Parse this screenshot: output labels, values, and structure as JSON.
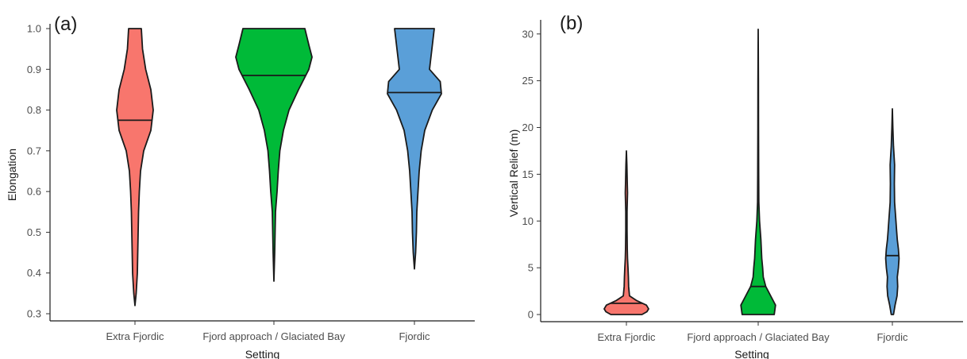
{
  "chart_data": [
    {
      "panel_label": "(a)",
      "type": "violin",
      "xlabel": "Setting",
      "ylabel": "Elongation",
      "ylim": [
        0.3,
        1.0
      ],
      "yticks": [
        0.3,
        0.4,
        0.5,
        0.6,
        0.7,
        0.8,
        0.9,
        1.0
      ],
      "ytick_labels": [
        "0.3",
        "0.4",
        "0.5",
        "0.6",
        "0.7",
        "0.8",
        "0.9",
        "1.0"
      ],
      "categories": [
        "Extra Fjordic",
        "Fjord approach / Glaciated Bay",
        "Fjordic"
      ],
      "series": [
        {
          "category": "Extra Fjordic",
          "color": "#f8766d",
          "median": 0.775,
          "min": 0.32,
          "max": 1.0,
          "profile": [
            [
              0.32,
              0.0
            ],
            [
              0.35,
              0.03
            ],
            [
              0.4,
              0.06
            ],
            [
              0.45,
              0.07
            ],
            [
              0.5,
              0.08
            ],
            [
              0.55,
              0.09
            ],
            [
              0.6,
              0.11
            ],
            [
              0.65,
              0.14
            ],
            [
              0.7,
              0.22
            ],
            [
              0.75,
              0.4
            ],
            [
              0.8,
              0.46
            ],
            [
              0.85,
              0.4
            ],
            [
              0.9,
              0.27
            ],
            [
              0.95,
              0.19
            ],
            [
              1.0,
              0.16
            ]
          ]
        },
        {
          "category": "Fjord approach / Glaciated Bay",
          "color": "#00ba38",
          "median": 0.885,
          "min": 0.38,
          "max": 1.0,
          "profile": [
            [
              0.38,
              0.0
            ],
            [
              0.45,
              0.02
            ],
            [
              0.5,
              0.03
            ],
            [
              0.55,
              0.04
            ],
            [
              0.6,
              0.08
            ],
            [
              0.65,
              0.11
            ],
            [
              0.7,
              0.15
            ],
            [
              0.75,
              0.24
            ],
            [
              0.8,
              0.38
            ],
            [
              0.85,
              0.62
            ],
            [
              0.9,
              0.88
            ],
            [
              0.93,
              0.96
            ],
            [
              0.96,
              0.88
            ],
            [
              1.0,
              0.78
            ]
          ]
        },
        {
          "category": "Fjordic",
          "color": "#5a9fd8",
          "median": 0.843,
          "min": 0.41,
          "max": 1.0,
          "profile": [
            [
              0.41,
              0.0
            ],
            [
              0.45,
              0.03
            ],
            [
              0.5,
              0.05
            ],
            [
              0.55,
              0.06
            ],
            [
              0.6,
              0.09
            ],
            [
              0.65,
              0.12
            ],
            [
              0.7,
              0.17
            ],
            [
              0.75,
              0.26
            ],
            [
              0.8,
              0.45
            ],
            [
              0.84,
              0.68
            ],
            [
              0.87,
              0.65
            ],
            [
              0.9,
              0.38
            ],
            [
              0.95,
              0.44
            ],
            [
              1.0,
              0.5
            ]
          ]
        }
      ]
    },
    {
      "panel_label": "(b)",
      "type": "violin",
      "xlabel": "Setting",
      "ylabel": "Vertical Relief (m)",
      "ylim": [
        0,
        31
      ],
      "yticks": [
        0,
        5,
        10,
        15,
        20,
        25,
        30
      ],
      "ytick_labels": [
        "0",
        "5",
        "10",
        "15",
        "20",
        "25",
        "30"
      ],
      "categories": [
        "Extra Fjordic",
        "Fjord approach / Glaciated Bay",
        "Fjordic"
      ],
      "series": [
        {
          "category": "Extra Fjordic",
          "color": "#f8766d",
          "median": 1.2,
          "min": 0,
          "max": 17.5,
          "profile": [
            [
              0.0,
              0.7
            ],
            [
              0.3,
              0.92
            ],
            [
              0.6,
              1.0
            ],
            [
              1.0,
              0.9
            ],
            [
              1.5,
              0.45
            ],
            [
              2.0,
              0.14
            ],
            [
              3.0,
              0.1
            ],
            [
              4.0,
              0.09
            ],
            [
              5.0,
              0.07
            ],
            [
              6.0,
              0.05
            ],
            [
              7.0,
              0.04
            ],
            [
              9.0,
              0.03
            ],
            [
              11.0,
              0.03
            ],
            [
              13.0,
              0.05
            ],
            [
              14.0,
              0.04
            ],
            [
              16.0,
              0.02
            ],
            [
              17.5,
              0.0
            ]
          ]
        },
        {
          "category": "Fjord approach / Glaciated Bay",
          "color": "#00ba38",
          "median": 3.0,
          "min": 0,
          "max": 30.5,
          "profile": [
            [
              0.0,
              0.72
            ],
            [
              1.0,
              0.78
            ],
            [
              2.0,
              0.56
            ],
            [
              3.0,
              0.34
            ],
            [
              4.0,
              0.23
            ],
            [
              5.0,
              0.2
            ],
            [
              6.0,
              0.16
            ],
            [
              8.0,
              0.12
            ],
            [
              10.0,
              0.06
            ],
            [
              12.0,
              0.03
            ],
            [
              15.0,
              0.02
            ],
            [
              20.0,
              0.015
            ],
            [
              25.0,
              0.01
            ],
            [
              30.5,
              0.0
            ]
          ]
        },
        {
          "category": "Fjordic",
          "color": "#5a9fd8",
          "median": 6.3,
          "min": 0,
          "max": 22,
          "profile": [
            [
              0.0,
              0.05
            ],
            [
              1.0,
              0.12
            ],
            [
              2.0,
              0.21
            ],
            [
              3.0,
              0.24
            ],
            [
              4.0,
              0.22
            ],
            [
              5.0,
              0.27
            ],
            [
              6.0,
              0.3
            ],
            [
              7.0,
              0.27
            ],
            [
              8.0,
              0.22
            ],
            [
              9.0,
              0.19
            ],
            [
              10.0,
              0.16
            ],
            [
              12.0,
              0.1
            ],
            [
              14.0,
              0.09
            ],
            [
              16.0,
              0.1
            ],
            [
              18.0,
              0.05
            ],
            [
              20.0,
              0.02
            ],
            [
              22.0,
              0.0
            ]
          ]
        }
      ]
    }
  ]
}
